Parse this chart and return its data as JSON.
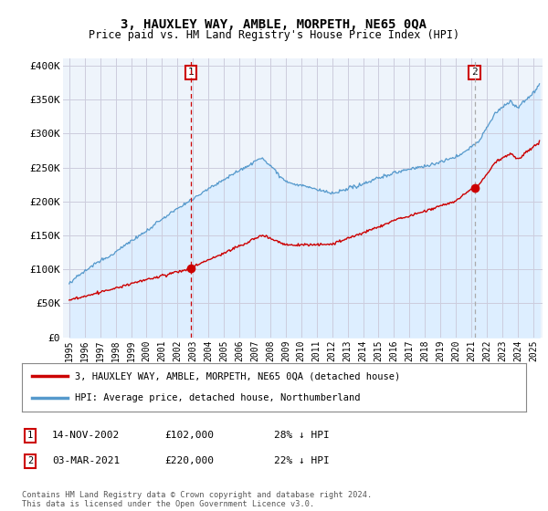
{
  "title": "3, HAUXLEY WAY, AMBLE, MORPETH, NE65 0QA",
  "subtitle": "Price paid vs. HM Land Registry's House Price Index (HPI)",
  "ylim": [
    0,
    400000
  ],
  "legend_entry1": "3, HAUXLEY WAY, AMBLE, MORPETH, NE65 0QA (detached house)",
  "legend_entry2": "HPI: Average price, detached house, Northumberland",
  "transaction1_date": "14-NOV-2002",
  "transaction1_price": "£102,000",
  "transaction1_pct": "28% ↓ HPI",
  "transaction2_date": "03-MAR-2021",
  "transaction2_price": "£220,000",
  "transaction2_pct": "22% ↓ HPI",
  "footnote": "Contains HM Land Registry data © Crown copyright and database right 2024.\nThis data is licensed under the Open Government Licence v3.0.",
  "line_color_red": "#cc0000",
  "line_color_blue": "#5599cc",
  "fill_color_blue": "#ddeeff",
  "vline1_color": "#cc0000",
  "vline2_color": "#aaaaaa",
  "background_color": "#ffffff",
  "chart_bg_color": "#eef4fb",
  "grid_color": "#ccccdd"
}
